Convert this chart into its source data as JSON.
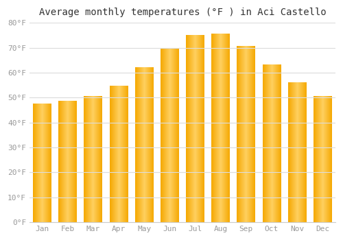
{
  "title": "Average monthly temperatures (°F ) in Aci Castello",
  "months": [
    "Jan",
    "Feb",
    "Mar",
    "Apr",
    "May",
    "Jun",
    "Jul",
    "Aug",
    "Sep",
    "Oct",
    "Nov",
    "Dec"
  ],
  "values": [
    47.5,
    48.5,
    50.5,
    54.5,
    62.0,
    69.5,
    75.0,
    75.5,
    70.5,
    63.0,
    56.0,
    50.5
  ],
  "bar_color_edge": "#F5A800",
  "bar_color_center": "#FFD060",
  "ylim": [
    0,
    80
  ],
  "ytick_step": 10,
  "background_color": "#FFFFFF",
  "plot_bg_color": "#FFFFFF",
  "grid_color": "#DDDDDD",
  "title_fontsize": 10,
  "tick_fontsize": 8,
  "tick_label_color": "#999999"
}
